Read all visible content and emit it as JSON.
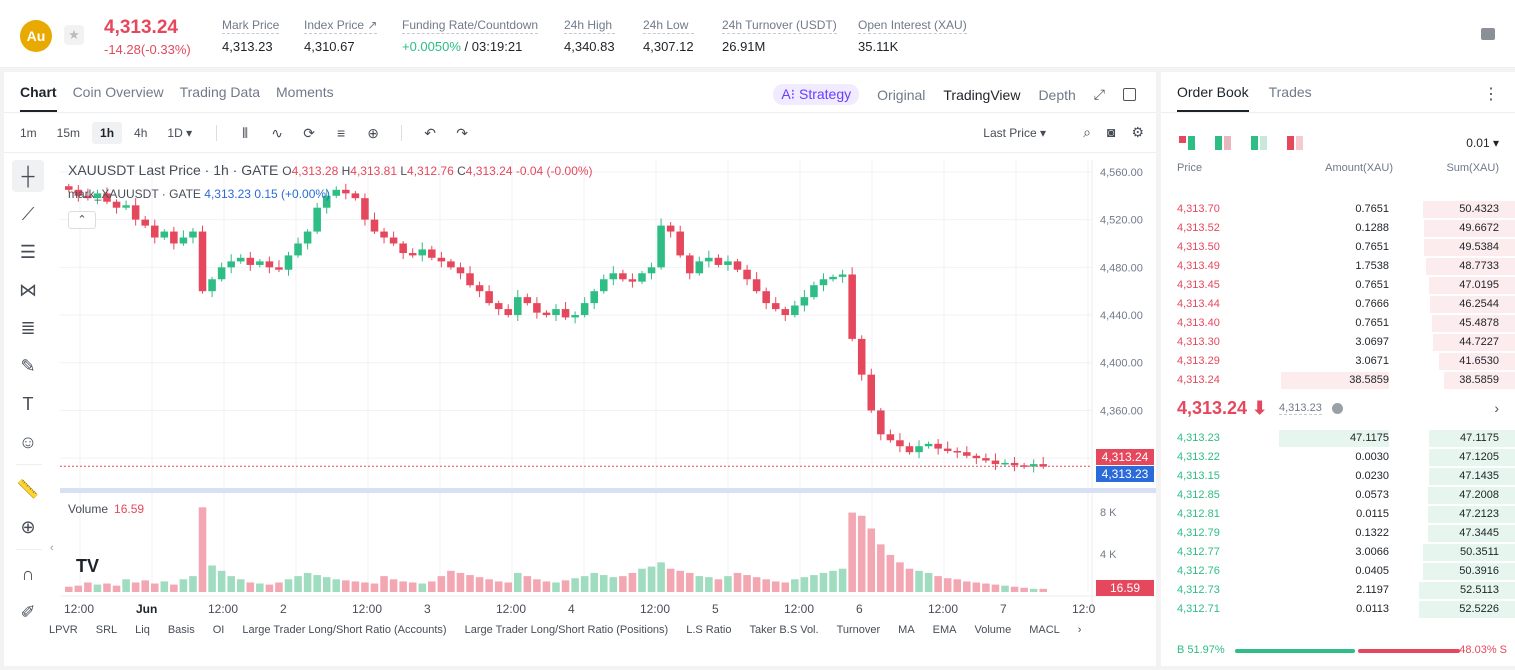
{
  "header": {
    "coin_badge": "Au",
    "last_price": "4,313.24",
    "change": "-14.28(-0.33%)",
    "stats": [
      {
        "label": "Mark Price",
        "value": "4,313.23",
        "x": 222
      },
      {
        "label": "Index Price ↗",
        "value": "4,310.67",
        "x": 304
      },
      {
        "label": "Funding Rate/Countdown",
        "value_green": "+0.0050%",
        "value": " / 03:19:21",
        "x": 402
      },
      {
        "label": "24h High",
        "value": "4,340.83",
        "x": 564
      },
      {
        "label": "24h Low",
        "value": "4,307.12",
        "x": 643
      },
      {
        "label": "24h Turnover (USDT)",
        "value": "26.91M",
        "x": 722
      },
      {
        "label": "Open Interest (XAU)",
        "value": "35.11K",
        "x": 858
      }
    ]
  },
  "chart_tabs": [
    "Chart",
    "Coin Overview",
    "Trading Data",
    "Moments"
  ],
  "view_tabs": {
    "strategy": "A⁝ Strategy",
    "original": "Original",
    "tradingview": "TradingView",
    "depth": "Depth"
  },
  "timeframes": [
    "1m",
    "15m",
    "1h",
    "4h",
    "1D ▾"
  ],
  "active_timeframe": "1h",
  "price_source": "Last Price ▾",
  "legend": {
    "title": "XAUUSDT Last Price · 1h · GATE",
    "o_label": "O",
    "o": "4,313.28",
    "h_label": "H",
    "h": "4,313.81",
    "l_label": "L",
    "l": "4,312.76",
    "c_label": "C",
    "c": "4,313.24",
    "chg": "-0.04 (-0.00%)",
    "mark_title": "mark_XAUUSDT · GATE",
    "mark_val": "4,313.23",
    "mark_chg": "0.15 (+0.00%)"
  },
  "volume": {
    "label": "Volume",
    "value": "16.59",
    "axis": [
      "8 K",
      "4 K"
    ]
  },
  "price_tags": {
    "last": "4,313.24",
    "mark": "4,313.23",
    "volume": "16.59"
  },
  "chart_data": {
    "type": "candlestick",
    "y_ticks": [
      "4,560.00",
      "4,520.00",
      "4,480.00",
      "4,440.00",
      "4,400.00",
      "4,360.00",
      "4,320.00"
    ],
    "ylim": [
      4300,
      4570
    ],
    "x_ticks": [
      "12:00",
      "Jun",
      "12:00",
      "2",
      "12:00",
      "3",
      "12:00",
      "4",
      "12:00",
      "5",
      "12:00",
      "6",
      "12:00",
      "7",
      "12:0"
    ],
    "close_path": [
      4545,
      4540,
      4538,
      4542,
      4535,
      4530,
      4532,
      4520,
      4515,
      4505,
      4510,
      4500,
      4505,
      4510,
      4460,
      4470,
      4480,
      4485,
      4488,
      4482,
      4485,
      4480,
      4478,
      4490,
      4500,
      4510,
      4530,
      4540,
      4545,
      4542,
      4538,
      4520,
      4510,
      4505,
      4500,
      4492,
      4490,
      4495,
      4488,
      4485,
      4480,
      4475,
      4465,
      4460,
      4450,
      4445,
      4440,
      4455,
      4450,
      4442,
      4440,
      4445,
      4438,
      4440,
      4450,
      4460,
      4470,
      4475,
      4470,
      4468,
      4475,
      4480,
      4515,
      4510,
      4490,
      4475,
      4485,
      4488,
      4482,
      4485,
      4478,
      4470,
      4460,
      4450,
      4445,
      4440,
      4448,
      4455,
      4465,
      4470,
      4472,
      4474,
      4420,
      4390,
      4360,
      4340,
      4335,
      4330,
      4325,
      4330,
      4332,
      4328,
      4326,
      4325,
      4322,
      4320,
      4318,
      4315,
      4316,
      4314,
      4313,
      4315,
      4313
    ],
    "volume_path": [
      500,
      600,
      900,
      700,
      800,
      600,
      1200,
      900,
      1100,
      800,
      1000,
      700,
      1200,
      1500,
      8000,
      2500,
      2000,
      1500,
      1200,
      900,
      800,
      700,
      900,
      1200,
      1500,
      1800,
      1600,
      1400,
      1200,
      1100,
      1000,
      900,
      800,
      1500,
      1200,
      1000,
      900,
      800,
      1000,
      1500,
      2000,
      1800,
      1600,
      1400,
      1200,
      1000,
      900,
      1800,
      1500,
      1200,
      1000,
      900,
      1100,
      1300,
      1500,
      1800,
      1600,
      1400,
      1500,
      1800,
      2200,
      2400,
      2800,
      2200,
      2000,
      1800,
      1500,
      1400,
      1200,
      1500,
      1800,
      1600,
      1400,
      1200,
      1000,
      900,
      1200,
      1400,
      1600,
      1800,
      2000,
      2200,
      7500,
      7200,
      6000,
      4500,
      3500,
      2800,
      2200,
      2000,
      1800,
      1500,
      1300,
      1200,
      1000,
      900,
      800,
      700,
      600,
      500,
      400,
      300,
      300
    ],
    "volume_ylim": [
      0,
      8500
    ]
  },
  "bottom_indicators": [
    "LPVR",
    "SRL",
    "Liq",
    "Basis",
    "OI",
    "Large Trader Long/Short Ratio (Accounts)",
    "Large Trader Long/Short Ratio (Positions)",
    "L.S Ratio",
    "Taker B.S Vol.",
    "Turnover",
    "MA",
    "EMA",
    "Volume",
    "MACL",
    "›"
  ],
  "orderbook": {
    "tabs": [
      "Order Book",
      "Trades"
    ],
    "precision": "0.01 ▾",
    "headers": {
      "price": "Price",
      "amount": "Amount(XAU)",
      "sum": "Sum(XAU)"
    },
    "asks": [
      {
        "price": "4,313.70",
        "amount": "0.7651",
        "sum": "50.4323"
      },
      {
        "price": "4,313.52",
        "amount": "0.1288",
        "sum": "49.6672"
      },
      {
        "price": "4,313.50",
        "amount": "0.7651",
        "sum": "49.5384"
      },
      {
        "price": "4,313.49",
        "amount": "1.7538",
        "sum": "48.7733"
      },
      {
        "price": "4,313.45",
        "amount": "0.7651",
        "sum": "47.0195"
      },
      {
        "price": "4,313.44",
        "amount": "0.7666",
        "sum": "46.2544"
      },
      {
        "price": "4,313.40",
        "amount": "0.7651",
        "sum": "45.4878"
      },
      {
        "price": "4,313.30",
        "amount": "3.0697",
        "sum": "44.7227"
      },
      {
        "price": "4,313.29",
        "amount": "3.0671",
        "sum": "41.6530"
      },
      {
        "price": "4,313.24",
        "amount": "38.5859",
        "sum": "38.5859"
      }
    ],
    "mid_price": "4,313.24 ⬇",
    "mid_mark": "4,313.23",
    "bids": [
      {
        "price": "4,313.23",
        "amount": "47.1175",
        "sum": "47.1175"
      },
      {
        "price": "4,313.22",
        "amount": "0.0030",
        "sum": "47.1205"
      },
      {
        "price": "4,313.15",
        "amount": "0.0230",
        "sum": "47.1435"
      },
      {
        "price": "4,312.85",
        "amount": "0.0573",
        "sum": "47.2008"
      },
      {
        "price": "4,312.81",
        "amount": "0.0115",
        "sum": "47.2123"
      },
      {
        "price": "4,312.79",
        "amount": "0.1322",
        "sum": "47.3445"
      },
      {
        "price": "4,312.77",
        "amount": "3.0066",
        "sum": "50.3511"
      },
      {
        "price": "4,312.76",
        "amount": "0.0405",
        "sum": "50.3916"
      },
      {
        "price": "4,312.73",
        "amount": "2.1197",
        "sum": "52.5113"
      },
      {
        "price": "4,312.71",
        "amount": "0.0113",
        "sum": "52.5226"
      }
    ],
    "buy_ratio": "B 51.97%",
    "sell_ratio": "48.03% S"
  },
  "colors": {
    "up": "#2ebd85",
    "down": "#e5485d"
  }
}
